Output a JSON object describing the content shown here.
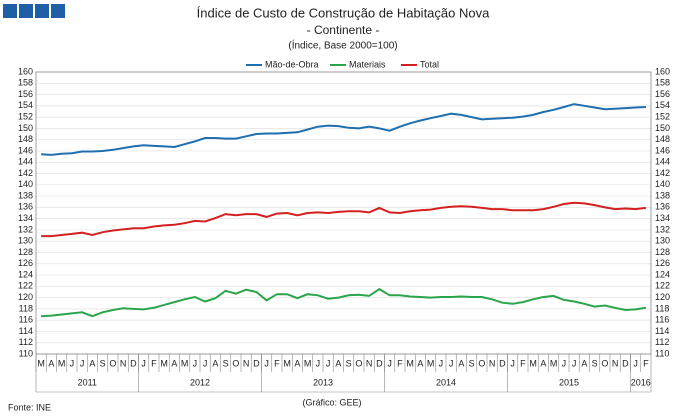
{
  "chart_data": {
    "type": "line",
    "title": "Índice de Custo de Construção de Habitação Nova",
    "subtitle": "- Continente -",
    "unit_note": "(Índice, Base 2000=100)",
    "source": "Fonte: INE",
    "credit": "(Gráfico: GEE)",
    "categories": [
      "M",
      "A",
      "M",
      "J",
      "J",
      "A",
      "S",
      "O",
      "N",
      "D",
      "J",
      "F",
      "M",
      "A",
      "M",
      "J",
      "J",
      "A",
      "S",
      "O",
      "N",
      "D",
      "J",
      "F",
      "M",
      "A",
      "M",
      "J",
      "J",
      "A",
      "S",
      "O",
      "N",
      "D",
      "J",
      "F",
      "M",
      "A",
      "M",
      "J",
      "J",
      "A",
      "S",
      "O",
      "N",
      "D",
      "J",
      "F",
      "M",
      "A",
      "M",
      "J",
      "J",
      "A",
      "S",
      "O",
      "N",
      "D",
      "J",
      "F"
    ],
    "years": [
      "2011",
      "2012",
      "2013",
      "2014",
      "2015",
      "2016"
    ],
    "series": [
      {
        "name": "Mão-de-Obra",
        "color": "#1f6fb0",
        "values": [
          145.4,
          145.3,
          145.5,
          145.6,
          145.9,
          145.9,
          146.0,
          146.2,
          146.5,
          146.8,
          147.0,
          146.9,
          146.8,
          146.7,
          147.2,
          147.7,
          148.3,
          148.3,
          148.2,
          148.2,
          148.6,
          149.0,
          149.1,
          149.1,
          149.2,
          149.3,
          149.8,
          150.3,
          150.5,
          150.4,
          150.1,
          150.0,
          150.3,
          150.0,
          149.6,
          150.3,
          150.9,
          151.4,
          151.8,
          152.2,
          152.6,
          152.4,
          152.0,
          151.6,
          151.7,
          151.8,
          151.9,
          152.1,
          152.4,
          152.9,
          153.3,
          153.8,
          154.3,
          154.0,
          153.7,
          153.4,
          153.5,
          153.6,
          153.7,
          153.8
        ]
      },
      {
        "name": "Materiais",
        "color": "#2aa54a",
        "values": [
          116.7,
          116.8,
          117.0,
          117.2,
          117.4,
          116.7,
          117.4,
          117.8,
          118.1,
          118.0,
          117.9,
          118.2,
          118.7,
          119.2,
          119.7,
          120.1,
          119.3,
          119.9,
          121.2,
          120.7,
          121.4,
          121.0,
          119.5,
          120.6,
          120.6,
          119.9,
          120.6,
          120.4,
          119.8,
          120.0,
          120.4,
          120.5,
          120.3,
          121.5,
          120.4,
          120.4,
          120.2,
          120.1,
          120.0,
          120.1,
          120.1,
          120.2,
          120.1,
          120.1,
          119.7,
          119.1,
          118.9,
          119.2,
          119.7,
          120.1,
          120.3,
          119.6,
          119.3,
          118.9,
          118.4,
          118.6,
          118.2,
          117.8,
          117.9,
          118.2
        ]
      },
      {
        "name": "Total",
        "color": "#d42020",
        "values": [
          130.9,
          130.9,
          131.1,
          131.3,
          131.5,
          131.1,
          131.6,
          131.9,
          132.1,
          132.3,
          132.3,
          132.6,
          132.8,
          132.9,
          133.2,
          133.6,
          133.5,
          134.1,
          134.8,
          134.6,
          134.8,
          134.8,
          134.3,
          134.9,
          135.0,
          134.6,
          135.0,
          135.1,
          135.0,
          135.2,
          135.3,
          135.3,
          135.1,
          135.9,
          135.1,
          135.0,
          135.3,
          135.5,
          135.6,
          135.9,
          136.1,
          136.2,
          136.1,
          135.9,
          135.7,
          135.7,
          135.5,
          135.5,
          135.5,
          135.7,
          136.1,
          136.6,
          136.8,
          136.7,
          136.4,
          136.0,
          135.7,
          135.8,
          135.7,
          135.9
        ]
      }
    ],
    "ylim": [
      110,
      160
    ],
    "yticks": [
      110,
      112,
      114,
      116,
      118,
      120,
      122,
      124,
      126,
      128,
      130,
      132,
      134,
      136,
      138,
      140,
      142,
      144,
      146,
      148,
      150,
      152,
      154,
      156,
      158,
      160
    ],
    "grid": true,
    "legend": "top"
  }
}
